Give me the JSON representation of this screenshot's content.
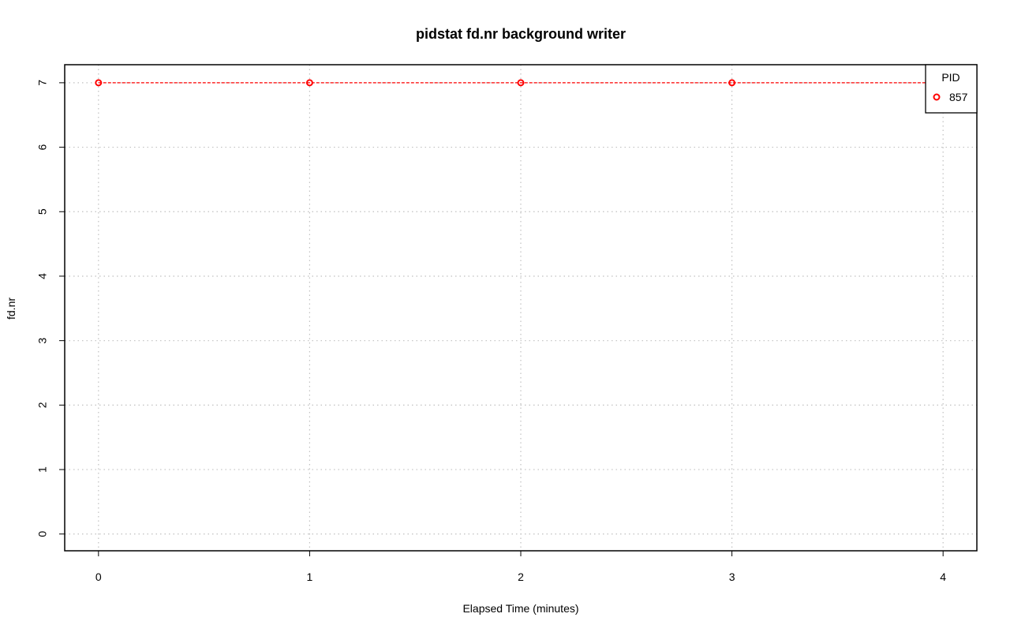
{
  "chart_data": {
    "type": "line",
    "title": "pidstat fd.nr background writer",
    "xlabel": "Elapsed Time (minutes)",
    "ylabel": "fd.nr",
    "xlim": [
      -0.16,
      4.16
    ],
    "ylim": [
      -0.26,
      7.28
    ],
    "xticks": [
      0,
      1,
      2,
      3,
      4
    ],
    "yticks": [
      0,
      1,
      2,
      3,
      4,
      5,
      6,
      7
    ],
    "grid": true,
    "legend": {
      "title": "PID",
      "placement": "top-right",
      "entries": [
        "857"
      ]
    },
    "series": [
      {
        "name": "857",
        "color": "#ff0000",
        "line_style": "dashed",
        "marker": "open-circle",
        "x": [
          0,
          1,
          2,
          3,
          4
        ],
        "y": [
          7,
          7,
          7,
          7,
          7
        ]
      }
    ]
  }
}
